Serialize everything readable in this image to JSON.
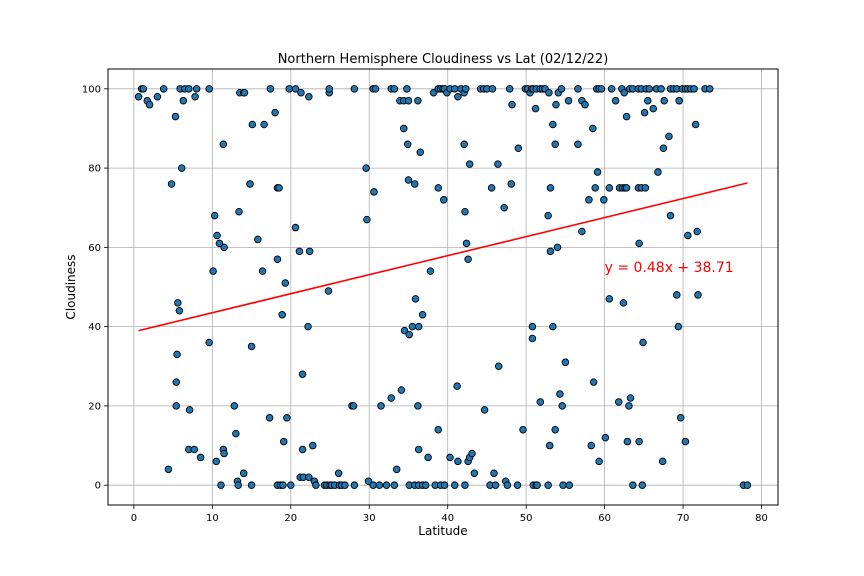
{
  "chart_data": {
    "type": "scatter",
    "title": "Northern Hemisphere Cloudiness vs Lat (02/12/22)",
    "xlabel": "Latitude",
    "ylabel": "Cloudiness",
    "xlim": [
      -3.3,
      82.1
    ],
    "ylim": [
      -5,
      105
    ],
    "x_ticks": [
      0,
      10,
      20,
      30,
      40,
      50,
      60,
      70,
      80
    ],
    "y_ticks": [
      0,
      20,
      40,
      60,
      80,
      100
    ],
    "grid": true,
    "marker_color": "#1f77b4",
    "marker_edge_color": "#000000",
    "regression": {
      "slope": 0.48,
      "intercept": 38.71,
      "x_range": [
        0.6,
        78.2
      ],
      "color": "#ff0000",
      "equation": "y = 0.48x + 38.71",
      "equation_position": [
        60,
        55
      ]
    },
    "points": [
      [
        0.6,
        98
      ],
      [
        1,
        100
      ],
      [
        1.2,
        100
      ],
      [
        1.7,
        97
      ],
      [
        2,
        96
      ],
      [
        3,
        98
      ],
      [
        3.8,
        100
      ],
      [
        5.3,
        93
      ],
      [
        5.9,
        100
      ],
      [
        6.3,
        97
      ],
      [
        6.5,
        100
      ],
      [
        7,
        100
      ],
      [
        7.8,
        98
      ],
      [
        8,
        100
      ],
      [
        9.6,
        100
      ],
      [
        11.4,
        86
      ],
      [
        13.5,
        99
      ],
      [
        14,
        99
      ],
      [
        14.1,
        99
      ],
      [
        15.1,
        91
      ],
      [
        16.6,
        91
      ],
      [
        17.4,
        100
      ],
      [
        18,
        94
      ],
      [
        19.8,
        100
      ],
      [
        20.6,
        100
      ],
      [
        21.3,
        99
      ],
      [
        22.3,
        98
      ],
      [
        24.9,
        99
      ],
      [
        24.9,
        100
      ],
      [
        28.1,
        100
      ],
      [
        30.5,
        100
      ],
      [
        30.8,
        100
      ],
      [
        32.8,
        100
      ],
      [
        33.2,
        100
      ],
      [
        33.9,
        97
      ],
      [
        34.4,
        97
      ],
      [
        34.8,
        100
      ],
      [
        35,
        97
      ],
      [
        36.2,
        97
      ],
      [
        38.2,
        99
      ],
      [
        38.8,
        100
      ],
      [
        39.1,
        100
      ],
      [
        39.4,
        100
      ],
      [
        39.6,
        100
      ],
      [
        39.9,
        99
      ],
      [
        40.3,
        100
      ],
      [
        40.9,
        100
      ],
      [
        41.3,
        98
      ],
      [
        41.7,
        100
      ],
      [
        42.1,
        99
      ],
      [
        42.3,
        100
      ],
      [
        44.2,
        100
      ],
      [
        44.6,
        100
      ],
      [
        45,
        100
      ],
      [
        45.7,
        100
      ],
      [
        47.9,
        100
      ],
      [
        48.2,
        96
      ],
      [
        49.9,
        100
      ],
      [
        50.2,
        100
      ],
      [
        50.5,
        99
      ],
      [
        50.7,
        100
      ],
      [
        50.9,
        100
      ],
      [
        51.2,
        95
      ],
      [
        51.3,
        100
      ],
      [
        51.8,
        100
      ],
      [
        52.1,
        100
      ],
      [
        52.4,
        100
      ],
      [
        52.9,
        99
      ],
      [
        53.8,
        96
      ],
      [
        54.1,
        99
      ],
      [
        54.5,
        100
      ],
      [
        56.6,
        100
      ],
      [
        57.1,
        97
      ],
      [
        57.5,
        96
      ],
      [
        59,
        100
      ],
      [
        59.3,
        100
      ],
      [
        59.6,
        100
      ],
      [
        60.9,
        100
      ],
      [
        61.4,
        97
      ],
      [
        62.2,
        100
      ],
      [
        62.5,
        99
      ],
      [
        62.8,
        93
      ],
      [
        63.2,
        100
      ],
      [
        63.6,
        100
      ],
      [
        64.3,
        100
      ],
      [
        64.7,
        100
      ],
      [
        65.1,
        94
      ],
      [
        65.3,
        100
      ],
      [
        65.5,
        97
      ],
      [
        65.7,
        100
      ],
      [
        66.2,
        95
      ],
      [
        66.6,
        100
      ],
      [
        67.2,
        100
      ],
      [
        67.6,
        97
      ],
      [
        68.4,
        100
      ],
      [
        68.8,
        100
      ],
      [
        69.2,
        100
      ],
      [
        69.5,
        97
      ],
      [
        69.9,
        100
      ],
      [
        70.3,
        100
      ],
      [
        70.6,
        100
      ],
      [
        71,
        100
      ],
      [
        71.4,
        100
      ],
      [
        71.6,
        91
      ],
      [
        72.8,
        100
      ],
      [
        73.4,
        100
      ],
      [
        6.1,
        80
      ],
      [
        11.5,
        60
      ],
      [
        10.3,
        68
      ],
      [
        10.6,
        63
      ],
      [
        10.9,
        61
      ],
      [
        10.1,
        54
      ],
      [
        13.4,
        69
      ],
      [
        14.8,
        76
      ],
      [
        15.8,
        62
      ],
      [
        16.4,
        54
      ],
      [
        18.3,
        75
      ],
      [
        18.5,
        75
      ],
      [
        18.3,
        57
      ],
      [
        19.3,
        51
      ],
      [
        20.6,
        65
      ],
      [
        21.1,
        59
      ],
      [
        22.4,
        59
      ],
      [
        24.8,
        49
      ],
      [
        29.6,
        80
      ],
      [
        29.7,
        67
      ],
      [
        30.6,
        74
      ],
      [
        34.4,
        90
      ],
      [
        34.9,
        86
      ],
      [
        35,
        77
      ],
      [
        35.8,
        76
      ],
      [
        36.5,
        84
      ],
      [
        37.8,
        54
      ],
      [
        38.8,
        75
      ],
      [
        39.5,
        72
      ],
      [
        42.1,
        86
      ],
      [
        42.2,
        69
      ],
      [
        42.4,
        61
      ],
      [
        42.6,
        57
      ],
      [
        42.8,
        81
      ],
      [
        45.6,
        75
      ],
      [
        46.4,
        81
      ],
      [
        47.2,
        70
      ],
      [
        48.1,
        76
      ],
      [
        49,
        85
      ],
      [
        52.8,
        68
      ],
      [
        53.1,
        75
      ],
      [
        53.4,
        91
      ],
      [
        53.7,
        86
      ],
      [
        54,
        60
      ],
      [
        53.1,
        59
      ],
      [
        55.4,
        97
      ],
      [
        56.6,
        86
      ],
      [
        57.1,
        64
      ],
      [
        58,
        72
      ],
      [
        58.5,
        90
      ],
      [
        58.8,
        75
      ],
      [
        59.1,
        79
      ],
      [
        60.6,
        75
      ],
      [
        61.9,
        75
      ],
      [
        62.3,
        75
      ],
      [
        62.6,
        75
      ],
      [
        62.8,
        75
      ],
      [
        64.3,
        75
      ],
      [
        64.7,
        75
      ],
      [
        65.2,
        75
      ],
      [
        64.4,
        61
      ],
      [
        66.8,
        79
      ],
      [
        67.5,
        85
      ],
      [
        68.2,
        88
      ],
      [
        68.4,
        68
      ],
      [
        69.5,
        97
      ],
      [
        70.6,
        63
      ],
      [
        71.8,
        64
      ],
      [
        59.9,
        72
      ],
      [
        4.8,
        76
      ],
      [
        5.6,
        46
      ],
      [
        5.8,
        44
      ],
      [
        5.5,
        33
      ],
      [
        5.4,
        26
      ],
      [
        5.4,
        20
      ],
      [
        7.1,
        19
      ],
      [
        9.6,
        36
      ],
      [
        11.1,
        0
      ],
      [
        12.8,
        20
      ],
      [
        13,
        13
      ],
      [
        15,
        35
      ],
      [
        17.3,
        17
      ],
      [
        18.9,
        43
      ],
      [
        19.5,
        17
      ],
      [
        19.1,
        11
      ],
      [
        21.5,
        28
      ],
      [
        22.2,
        40
      ],
      [
        15,
        0
      ],
      [
        13.2,
        1
      ],
      [
        13.3,
        0
      ],
      [
        14,
        3
      ],
      [
        11.4,
        9
      ],
      [
        11.5,
        8
      ],
      [
        10.5,
        6
      ],
      [
        7,
        9
      ],
      [
        7.7,
        9
      ],
      [
        8.5,
        7
      ],
      [
        4.4,
        4
      ],
      [
        18.3,
        0
      ],
      [
        18.7,
        0
      ],
      [
        19,
        0
      ],
      [
        20,
        0
      ],
      [
        21.2,
        2
      ],
      [
        21.5,
        9
      ],
      [
        21.6,
        2
      ],
      [
        22.3,
        2
      ],
      [
        22.8,
        10
      ],
      [
        23,
        1
      ],
      [
        23.2,
        0
      ],
      [
        24.3,
        0
      ],
      [
        24.6,
        0
      ],
      [
        25,
        0
      ],
      [
        25.2,
        0
      ],
      [
        25.6,
        0
      ],
      [
        26.1,
        3
      ],
      [
        26.2,
        0
      ],
      [
        26.5,
        0
      ],
      [
        26.9,
        0
      ],
      [
        27.8,
        20
      ],
      [
        28,
        20
      ],
      [
        28.1,
        0
      ],
      [
        29.9,
        1
      ],
      [
        30.5,
        0
      ],
      [
        31.5,
        20
      ],
      [
        31.3,
        0
      ],
      [
        32.2,
        0
      ],
      [
        32.8,
        22
      ],
      [
        33.5,
        4
      ],
      [
        33.2,
        0
      ],
      [
        34.1,
        24
      ],
      [
        34.5,
        39
      ],
      [
        35.1,
        38
      ],
      [
        35.9,
        47
      ],
      [
        35.5,
        40
      ],
      [
        36.3,
        40
      ],
      [
        36.8,
        43
      ],
      [
        36.2,
        20
      ],
      [
        36.3,
        9
      ],
      [
        35.1,
        0
      ],
      [
        35.8,
        0
      ],
      [
        36.3,
        0
      ],
      [
        36.8,
        0
      ],
      [
        37.2,
        0
      ],
      [
        37.5,
        7
      ],
      [
        38.4,
        0
      ],
      [
        38.8,
        14
      ],
      [
        39.1,
        0
      ],
      [
        39.6,
        0
      ],
      [
        40.3,
        7
      ],
      [
        40.9,
        0
      ],
      [
        41.2,
        25
      ],
      [
        41.3,
        6
      ],
      [
        42.2,
        0
      ],
      [
        42.6,
        6
      ],
      [
        42.8,
        7
      ],
      [
        43.1,
        8
      ],
      [
        43.4,
        3
      ],
      [
        44.7,
        19
      ],
      [
        45.4,
        0
      ],
      [
        45.9,
        3
      ],
      [
        46.1,
        0
      ],
      [
        46.5,
        30
      ],
      [
        47.4,
        1
      ],
      [
        47.6,
        0
      ],
      [
        48.9,
        0
      ],
      [
        49.6,
        14
      ],
      [
        50.8,
        40
      ],
      [
        50.8,
        37
      ],
      [
        50.9,
        0
      ],
      [
        51.3,
        0
      ],
      [
        51.4,
        0
      ],
      [
        51.8,
        21
      ],
      [
        52.8,
        0
      ],
      [
        53,
        10
      ],
      [
        53.4,
        40
      ],
      [
        53.7,
        14
      ],
      [
        54.3,
        23
      ],
      [
        54.6,
        20
      ],
      [
        54.7,
        0
      ],
      [
        55,
        31
      ],
      [
        55.5,
        0
      ],
      [
        58.3,
        10
      ],
      [
        58.6,
        26
      ],
      [
        59.3,
        6
      ],
      [
        60.1,
        12
      ],
      [
        60.6,
        47
      ],
      [
        61.8,
        21
      ],
      [
        62.4,
        46
      ],
      [
        62.9,
        11
      ],
      [
        63.1,
        20
      ],
      [
        63.3,
        22
      ],
      [
        63.6,
        0
      ],
      [
        64.4,
        11
      ],
      [
        64.8,
        0
      ],
      [
        64.9,
        36
      ],
      [
        67.4,
        6
      ],
      [
        69.2,
        48
      ],
      [
        69.4,
        40
      ],
      [
        69.7,
        17
      ],
      [
        70.3,
        11
      ],
      [
        71.9,
        48
      ],
      [
        77.7,
        0
      ],
      [
        78.2,
        0
      ]
    ]
  }
}
